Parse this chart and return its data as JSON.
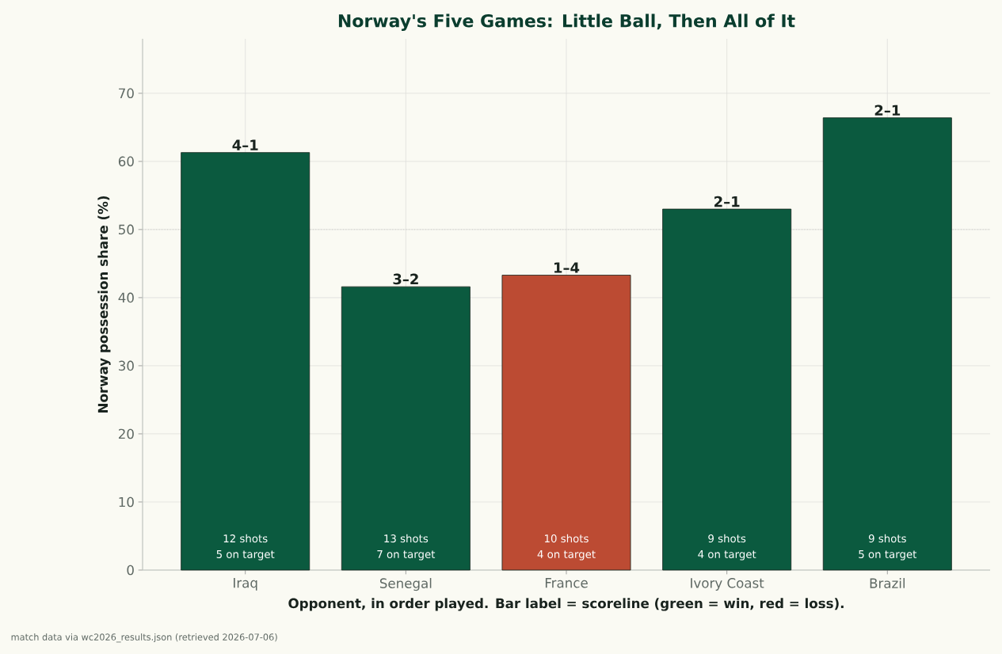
{
  "chart_data": {
    "type": "bar",
    "title": "Norway's Five Games: Little Ball, Then All of It",
    "xlabel": "Opponent, in order played. Bar label = scoreline (green = win, red = loss).",
    "ylabel": "Norway possession share (%)",
    "categories": [
      "Iraq",
      "Senegal",
      "France",
      "Ivory Coast",
      "Brazil"
    ],
    "values": [
      61.3,
      41.6,
      43.3,
      53.0,
      66.4
    ],
    "colors": [
      "#0b5a3f",
      "#0b5a3f",
      "#bc4b33",
      "#0b5a3f",
      "#0b5a3f"
    ],
    "value_labels": [
      "4–1",
      "3–2",
      "1–4",
      "2–1",
      "2–1"
    ],
    "ylim": [
      0,
      78
    ],
    "yticks": [
      0,
      10,
      20,
      30,
      40,
      50,
      60,
      70
    ],
    "grid": true,
    "ref_lines": [
      {
        "axis": "y",
        "value": 50,
        "color": "#bbbbbb",
        "line_style": "dotted"
      }
    ],
    "annotations": [
      "12 shots",
      "5 on target",
      "13 shots",
      "7 on target",
      "10 shots",
      "4 on target",
      "9 shots",
      "4 on target",
      "9 shots",
      "5 on target",
      "match data via wc2026_results.json (retrieved 2026-07-06)"
    ]
  }
}
